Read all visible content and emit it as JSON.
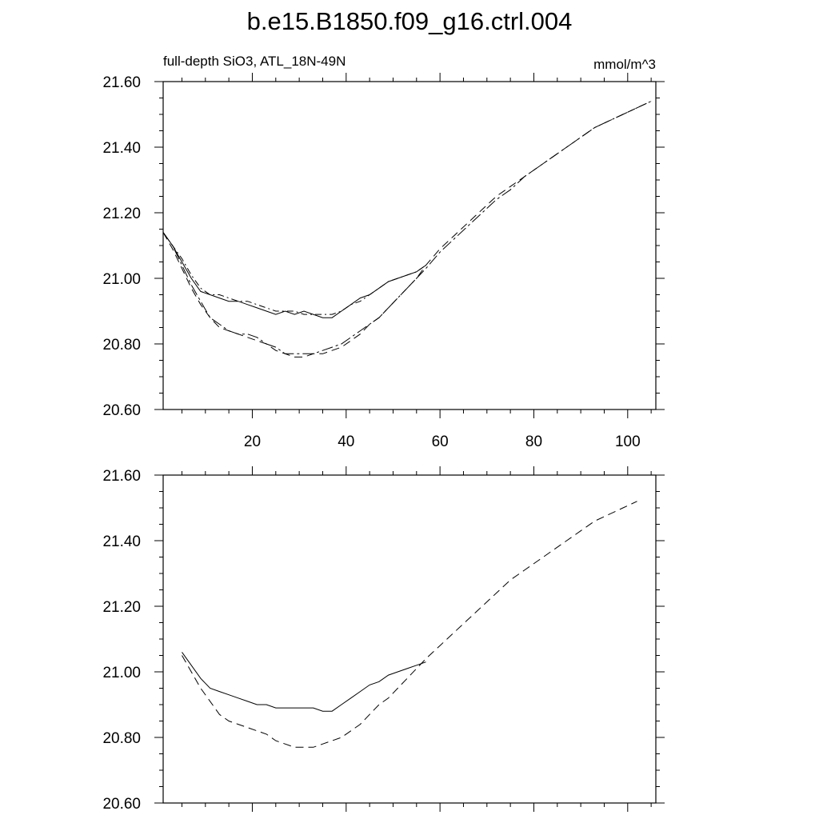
{
  "figure": {
    "title": "b.e15.B1850.f09_g16.ctrl.004",
    "left_string": "full-depth SiO3, ATL_18N-49N",
    "right_string": "mmol/m^3"
  },
  "chart_data": [
    {
      "type": "line",
      "title": "b.e15.B1850.f09_g16.ctrl.004",
      "xlabel": "",
      "ylabel": "",
      "xlim": [
        1,
        106
      ],
      "ylim": [
        20.6,
        21.6
      ],
      "x_ticks": [
        20,
        40,
        60,
        80,
        100
      ],
      "y_ticks": [
        "20.60",
        "20.80",
        "21.00",
        "21.20",
        "21.40",
        "21.60"
      ],
      "grid": false,
      "series": [
        {
          "style": "solid",
          "x": [
            1,
            3,
            5,
            7,
            9,
            11,
            13,
            15,
            17,
            19,
            21,
            23,
            25,
            27,
            29,
            31,
            33,
            35,
            37,
            39,
            41,
            43,
            45,
            47,
            49,
            51,
            53,
            55,
            57
          ],
          "y": [
            21.14,
            21.1,
            21.05,
            21.0,
            20.96,
            20.95,
            20.94,
            20.93,
            20.93,
            20.92,
            20.91,
            20.9,
            20.89,
            20.9,
            20.89,
            20.9,
            20.89,
            20.88,
            20.88,
            20.9,
            20.92,
            20.94,
            20.95,
            20.97,
            20.99,
            21.0,
            21.01,
            21.02,
            21.04
          ]
        },
        {
          "style": "dash-dot",
          "x": [
            1,
            3,
            5,
            7,
            9,
            11,
            13,
            15,
            17,
            19,
            21,
            23,
            25,
            27,
            29,
            31,
            33,
            35,
            37,
            39,
            41,
            43,
            45,
            47,
            49,
            51,
            53,
            55,
            57
          ],
          "y": [
            21.14,
            21.1,
            21.06,
            21.01,
            20.97,
            20.95,
            20.95,
            20.94,
            20.93,
            20.93,
            20.92,
            20.91,
            20.9,
            20.9,
            20.9,
            20.89,
            20.89,
            20.89,
            20.89,
            20.9,
            20.92,
            20.93,
            20.95,
            20.97,
            20.99,
            21.0,
            21.01,
            21.02,
            21.04
          ]
        },
        {
          "style": "dashed",
          "x": [
            1,
            3,
            5,
            7,
            9,
            11,
            13,
            15,
            17,
            19,
            21,
            23,
            25,
            27,
            29,
            31,
            33,
            35,
            37,
            39,
            41,
            43,
            45,
            47,
            49,
            51,
            53,
            55,
            57,
            60,
            63,
            66,
            69,
            72,
            75,
            78,
            81,
            84,
            87,
            90,
            93,
            96,
            99,
            102,
            105
          ],
          "y": [
            21.14,
            21.09,
            21.03,
            20.97,
            20.92,
            20.88,
            20.85,
            20.84,
            20.83,
            20.82,
            20.81,
            20.8,
            20.78,
            20.77,
            20.76,
            20.76,
            20.77,
            20.77,
            20.78,
            20.79,
            20.81,
            20.83,
            20.86,
            20.88,
            20.91,
            20.94,
            20.97,
            21.0,
            21.04,
            21.09,
            21.13,
            21.17,
            21.21,
            21.25,
            21.28,
            21.31,
            21.34,
            21.37,
            21.4,
            21.43,
            21.46,
            21.48,
            21.5,
            21.52,
            21.54
          ]
        },
        {
          "style": "long-dash-dot",
          "x": [
            1,
            3,
            5,
            7,
            9,
            11,
            13,
            15,
            17,
            19,
            21,
            23,
            25,
            27,
            29,
            31,
            33,
            35,
            37,
            39,
            41,
            43,
            45,
            47,
            49,
            51,
            53,
            55,
            57,
            60,
            63,
            66,
            69,
            72,
            75,
            78,
            81,
            84,
            87,
            90,
            93,
            96,
            99,
            102,
            105
          ],
          "y": [
            21.14,
            21.1,
            21.04,
            20.98,
            20.93,
            20.88,
            20.86,
            20.84,
            20.83,
            20.83,
            20.82,
            20.8,
            20.79,
            20.77,
            20.77,
            20.77,
            20.77,
            20.78,
            20.79,
            20.8,
            20.82,
            20.84,
            20.86,
            20.88,
            20.91,
            20.94,
            20.97,
            21.0,
            21.03,
            21.08,
            21.12,
            21.16,
            21.2,
            21.24,
            21.27,
            21.31,
            21.34,
            21.37,
            21.4,
            21.43,
            21.46,
            21.48,
            21.5,
            21.52,
            21.54
          ]
        }
      ]
    },
    {
      "type": "line",
      "xlabel": "",
      "ylabel": "",
      "xlim": [
        1,
        106
      ],
      "ylim": [
        20.6,
        21.6
      ],
      "y_ticks": [
        "20.60",
        "20.80",
        "21.00",
        "21.20",
        "21.40",
        "21.60"
      ],
      "grid": false,
      "series": [
        {
          "style": "solid",
          "x": [
            5,
            7,
            9,
            11,
            13,
            15,
            17,
            19,
            21,
            23,
            25,
            27,
            29,
            31,
            33,
            35,
            37,
            39,
            41,
            43,
            45,
            47,
            49,
            51,
            53,
            55,
            57
          ],
          "y": [
            21.06,
            21.02,
            20.98,
            20.95,
            20.94,
            20.93,
            20.92,
            20.91,
            20.9,
            20.9,
            20.89,
            20.89,
            20.89,
            20.89,
            20.89,
            20.88,
            20.88,
            20.9,
            20.92,
            20.94,
            20.96,
            20.97,
            20.99,
            21.0,
            21.01,
            21.02,
            21.03
          ]
        },
        {
          "style": "dashed",
          "x": [
            5,
            7,
            9,
            11,
            13,
            15,
            17,
            19,
            21,
            23,
            25,
            27,
            29,
            31,
            33,
            35,
            37,
            39,
            41,
            43,
            45,
            47,
            49,
            51,
            53,
            55,
            57,
            60,
            63,
            66,
            69,
            72,
            75,
            78,
            81,
            84,
            87,
            90,
            93,
            96,
            99,
            102
          ],
          "y": [
            21.05,
            21.0,
            20.95,
            20.91,
            20.87,
            20.85,
            20.84,
            20.83,
            20.82,
            20.81,
            20.79,
            20.78,
            20.77,
            20.77,
            20.77,
            20.78,
            20.79,
            20.8,
            20.82,
            20.84,
            20.87,
            20.9,
            20.92,
            20.95,
            20.98,
            21.01,
            21.04,
            21.08,
            21.12,
            21.16,
            21.2,
            21.24,
            21.28,
            21.31,
            21.34,
            21.37,
            21.4,
            21.43,
            21.46,
            21.48,
            21.5,
            21.52
          ]
        }
      ]
    }
  ]
}
